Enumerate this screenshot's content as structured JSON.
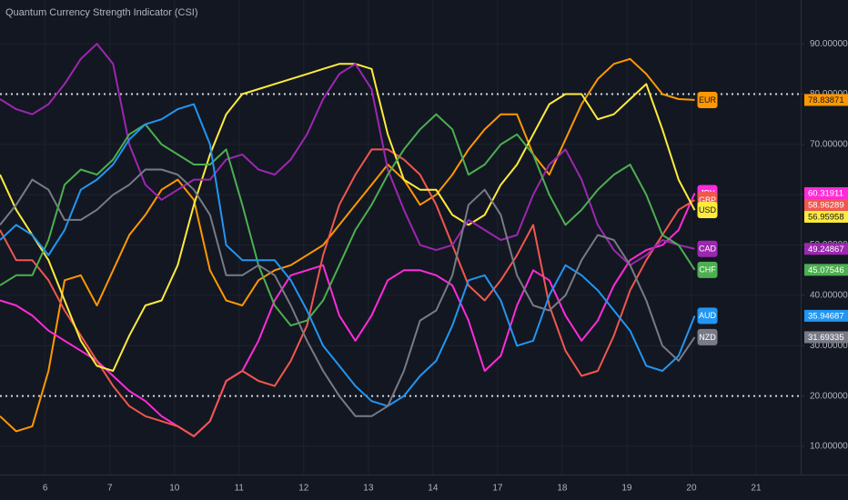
{
  "chart_data": {
    "type": "line",
    "title": "Quantum Currency Strength Indicator (CSI)",
    "x": [
      -0.7,
      -0.45,
      -0.2,
      0.05,
      0.3,
      0.55,
      0.8,
      1.05,
      1.3,
      1.55,
      1.8,
      2.05,
      2.3,
      2.55,
      2.8,
      3.05,
      3.3,
      3.55,
      3.8,
      4.05,
      4.3,
      4.55,
      4.8,
      5.05,
      5.3,
      5.55,
      5.8,
      6.05,
      6.3,
      6.55,
      6.8,
      7.05,
      7.3,
      7.55,
      7.8,
      8.05,
      8.3,
      8.55,
      8.8,
      9.05,
      9.3,
      9.55,
      9.8,
      10.05
    ],
    "xlim": [
      -0.7,
      11.69
    ],
    "xticks": [
      {
        "value": 0,
        "label": "6"
      },
      {
        "value": 1,
        "label": "7"
      },
      {
        "value": 2,
        "label": "10"
      },
      {
        "value": 3,
        "label": "11"
      },
      {
        "value": 4,
        "label": "12"
      },
      {
        "value": 5,
        "label": "13"
      },
      {
        "value": 6,
        "label": "14"
      },
      {
        "value": 7,
        "label": "17"
      },
      {
        "value": 8,
        "label": "18"
      },
      {
        "value": 9,
        "label": "19"
      },
      {
        "value": 10,
        "label": "20"
      },
      {
        "value": 11,
        "label": "21"
      }
    ],
    "ylim": [
      4.4,
      98.7
    ],
    "yticks": [
      {
        "value": 10,
        "label": "10.00000"
      },
      {
        "value": 20,
        "label": "20.00000"
      },
      {
        "value": 30,
        "label": "30.00000"
      },
      {
        "value": 40,
        "label": "40.00000"
      },
      {
        "value": 50,
        "label": "50.00000"
      },
      {
        "value": 60,
        "label": "60.00000"
      },
      {
        "value": 70,
        "label": "70.00000"
      },
      {
        "value": 80,
        "label": "80.00000"
      },
      {
        "value": 90,
        "label": "90.00000"
      }
    ],
    "grid": true,
    "hlines": [
      80,
      20
    ],
    "series": [
      {
        "name": "EUR",
        "color": "#ff9800",
        "values": [
          16,
          13,
          14,
          25,
          43,
          44,
          38,
          45,
          52,
          56,
          61,
          63,
          59,
          45,
          39,
          38,
          43,
          45,
          46,
          48,
          50,
          54,
          58,
          62,
          66,
          63,
          58,
          60,
          64,
          69,
          73,
          76,
          76,
          68,
          64,
          71,
          78,
          83,
          86,
          87,
          84,
          80,
          79,
          78.83871
        ]
      },
      {
        "name": "JPY",
        "color": "#ff2bd9",
        "values": [
          39,
          38,
          36,
          33,
          31,
          29,
          27,
          24,
          21,
          19,
          16,
          14,
          12,
          15,
          23,
          25,
          31,
          39,
          44,
          45,
          46,
          36,
          31,
          36,
          43,
          45,
          45,
          44,
          42,
          35,
          25,
          28,
          38,
          45,
          43,
          36,
          31,
          35,
          42,
          47,
          49,
          50,
          53,
          60.31911
        ]
      },
      {
        "name": "GBP",
        "color": "#f0574e",
        "values": [
          53,
          47,
          47,
          43,
          37,
          32,
          27,
          22,
          18,
          16,
          15,
          14,
          12,
          15,
          23,
          25,
          23,
          22,
          27,
          34,
          48,
          58,
          64,
          69,
          69,
          67,
          64,
          58,
          50,
          42,
          39,
          43,
          48,
          54,
          38,
          29,
          24,
          25,
          32,
          41,
          47,
          52,
          57,
          58.96289
        ]
      },
      {
        "name": "USD",
        "color": "#ffeb3b",
        "values": [
          64,
          57,
          52,
          47,
          39,
          31,
          26,
          25,
          32,
          38,
          39,
          46,
          58,
          68,
          76,
          80,
          81,
          82,
          83,
          84,
          85,
          86,
          86,
          85,
          72,
          63,
          61,
          61,
          56,
          54,
          56,
          62,
          66,
          72,
          78,
          80,
          80,
          75,
          76,
          79,
          82,
          73,
          63,
          56.95958
        ]
      },
      {
        "name": "CAD",
        "color": "#9c27b0",
        "values": [
          79,
          77,
          76,
          78,
          82,
          87,
          90,
          86,
          70,
          62,
          59,
          61,
          63,
          63,
          67,
          68,
          65,
          64,
          67,
          72,
          79,
          84,
          86,
          81,
          65,
          57,
          50,
          49,
          50,
          55,
          53,
          51,
          52,
          60,
          66,
          69,
          63,
          54,
          49,
          46,
          48,
          51,
          50,
          49.24867
        ]
      },
      {
        "name": "CHF",
        "color": "#4caf50",
        "values": [
          42,
          44,
          44,
          51,
          62,
          65,
          64,
          67,
          72,
          74,
          70,
          68,
          66,
          66,
          69,
          58,
          46,
          38,
          34,
          35,
          39,
          46,
          53,
          58,
          64,
          69,
          73,
          76,
          73,
          64,
          66,
          70,
          72,
          68,
          60,
          54,
          57,
          61,
          64,
          66,
          60,
          52,
          50,
          45.07546
        ]
      },
      {
        "name": "AUD",
        "color": "#2196f3",
        "values": [
          51,
          54,
          52,
          48,
          53,
          61,
          63,
          66,
          71,
          74,
          75,
          77,
          78,
          70,
          50,
          47,
          47,
          47,
          43,
          37,
          30,
          26,
          22,
          19,
          18,
          20,
          24,
          27,
          34,
          43,
          44,
          39,
          30,
          31,
          40,
          46,
          44,
          41,
          37,
          33,
          26,
          25,
          28,
          35.94687
        ]
      },
      {
        "name": "NZD",
        "color": "#787b86",
        "values": [
          54,
          58,
          63,
          61,
          55,
          55,
          57,
          60,
          62,
          65,
          65,
          64,
          61,
          56,
          44,
          44,
          46,
          44,
          38,
          31,
          25,
          20,
          16,
          16,
          18,
          25,
          35,
          37,
          44,
          58,
          61,
          56,
          44,
          38,
          37,
          40,
          47,
          52,
          51,
          46,
          39,
          30,
          27,
          31.69335
        ]
      }
    ]
  }
}
